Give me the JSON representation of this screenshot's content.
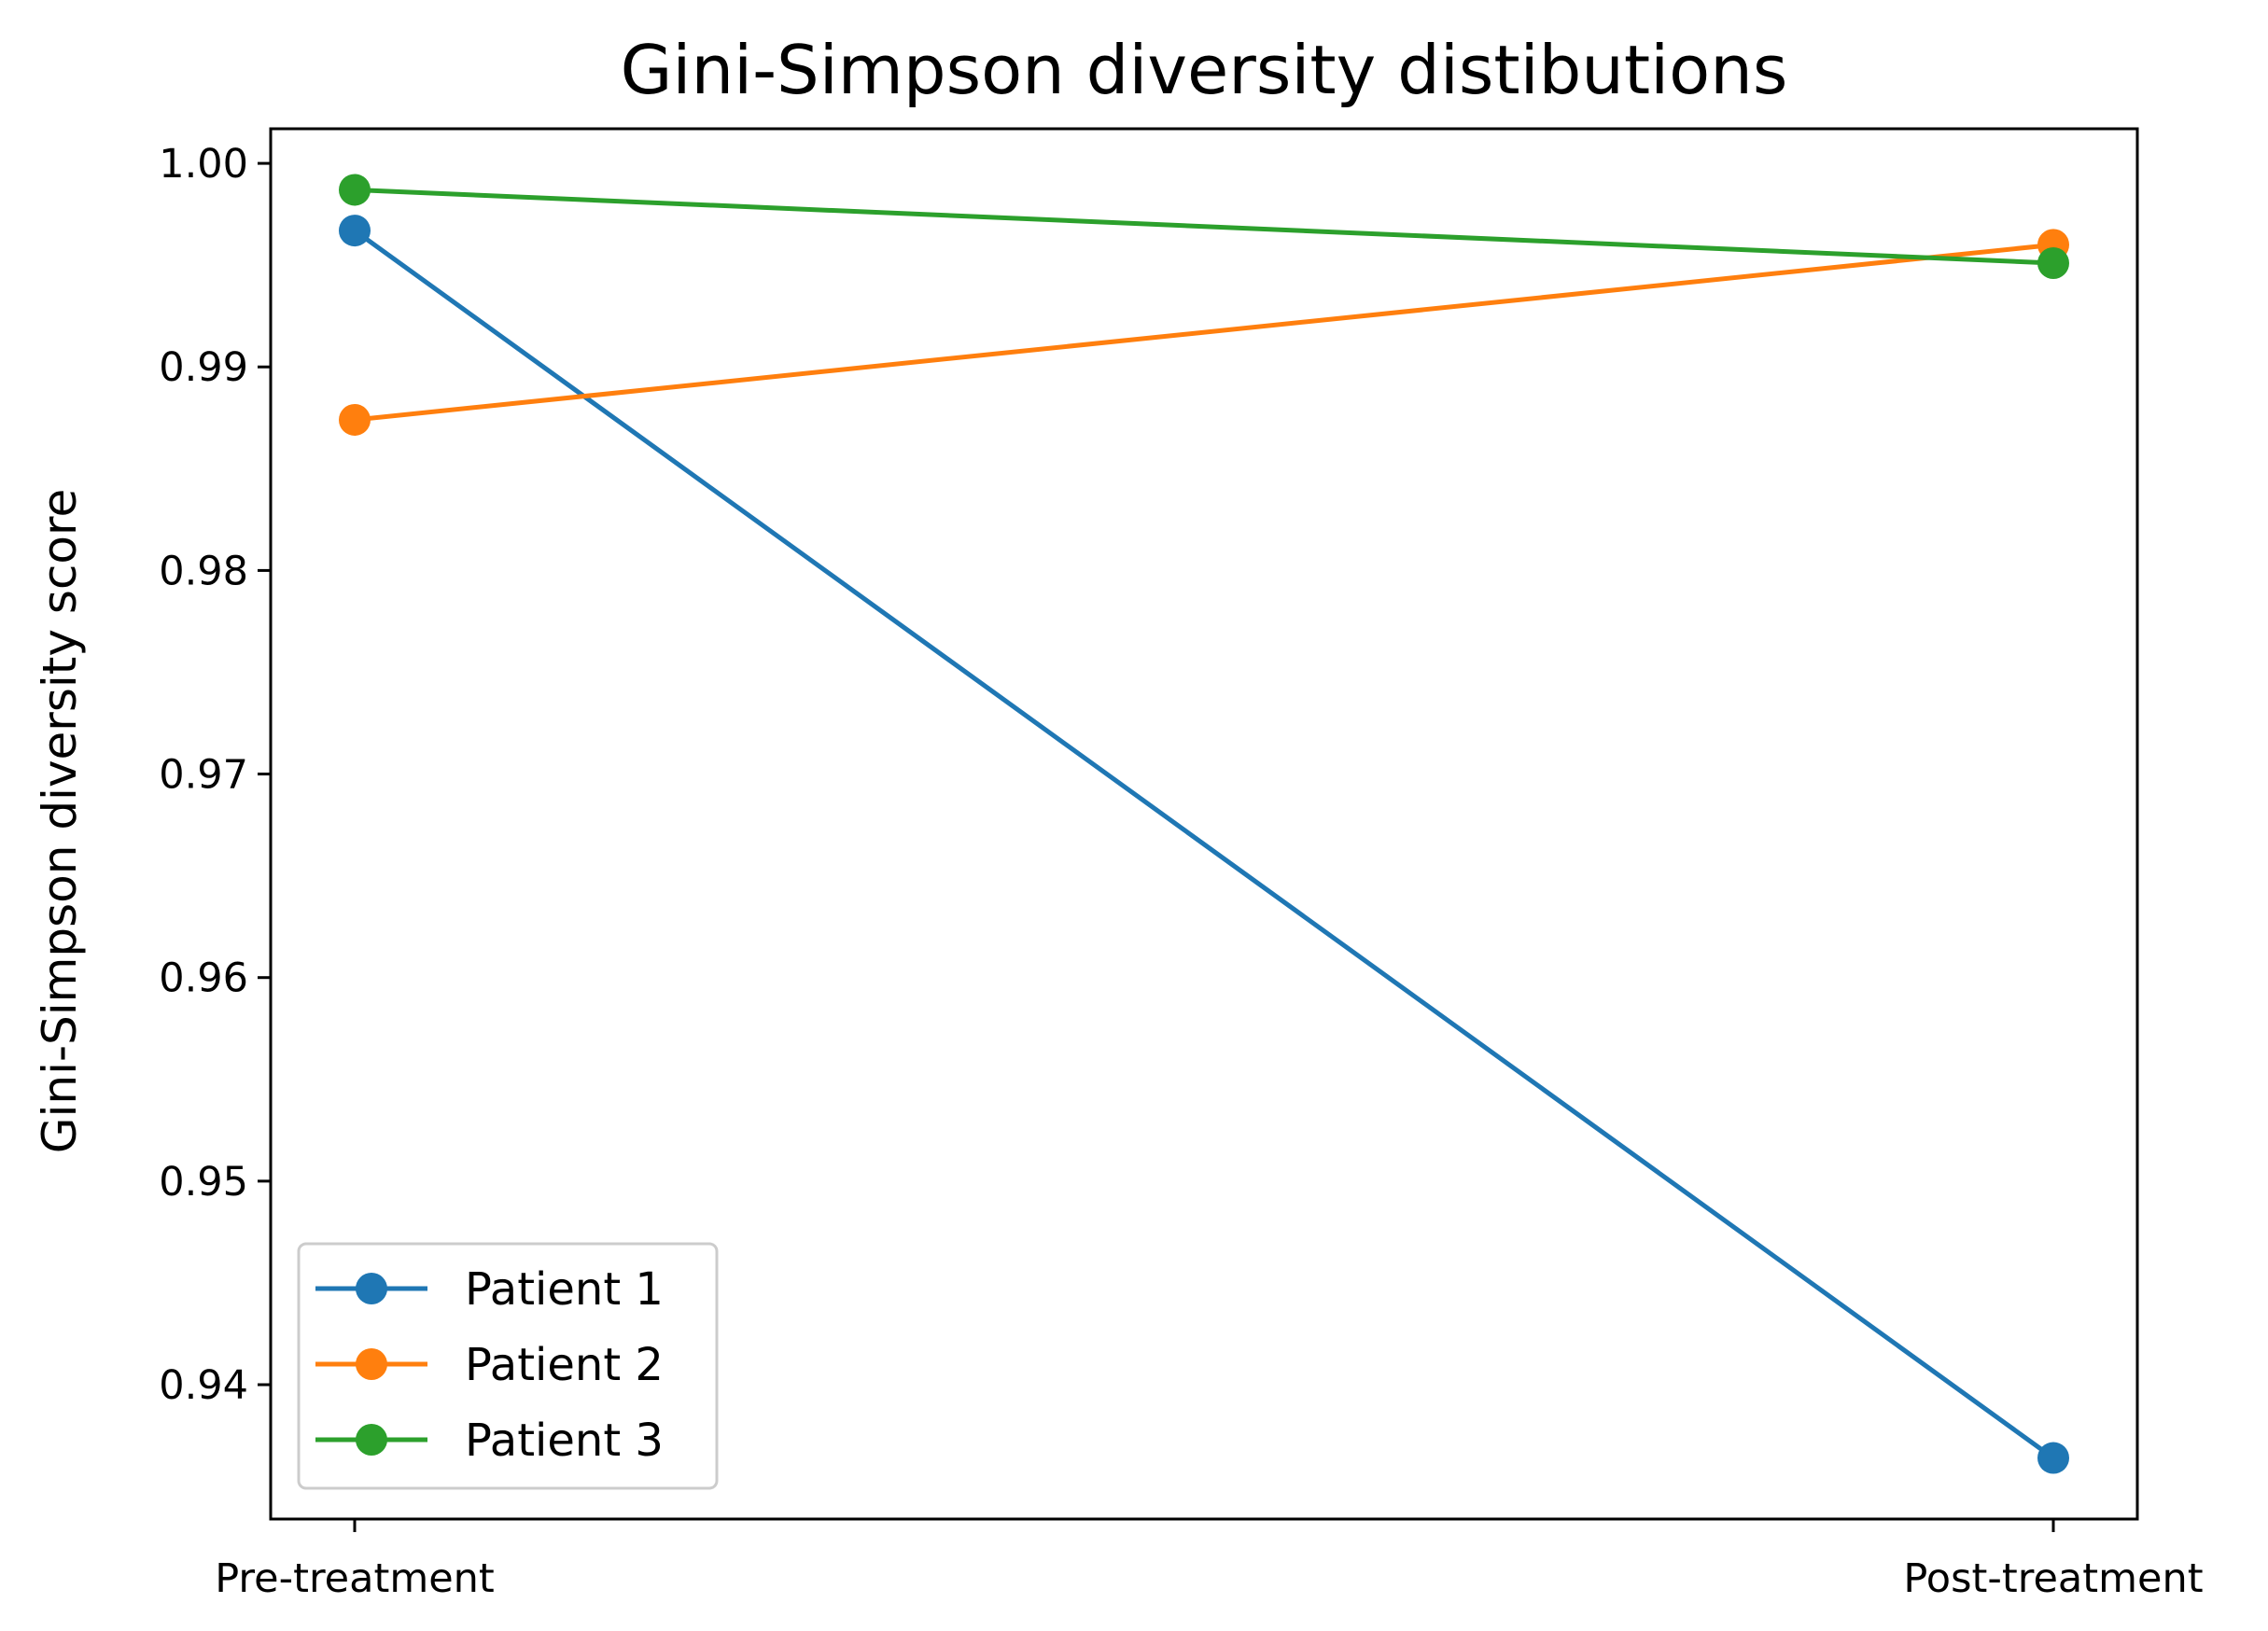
{
  "chart_data": {
    "type": "line",
    "title": "Gini-Simpson diversity distibutions",
    "xlabel": "",
    "ylabel": "Gini-Simpson diversity score",
    "categories": [
      "Pre-treatment",
      "Post-treatment"
    ],
    "series": [
      {
        "name": "Patient 1",
        "values": [
          0.9967,
          0.9364
        ],
        "color": "#1f77b4"
      },
      {
        "name": "Patient 2",
        "values": [
          0.9874,
          0.996
        ],
        "color": "#ff7f0e"
      },
      {
        "name": "Patient 3",
        "values": [
          0.9987,
          0.9951
        ],
        "color": "#2ca02c"
      }
    ],
    "ylim": [
      0.9334,
      1.0017
    ],
    "yticks": [
      "0.94",
      "0.95",
      "0.96",
      "0.97",
      "0.98",
      "0.99",
      "1.00"
    ],
    "grid": false,
    "legend_position": "lower-left"
  }
}
